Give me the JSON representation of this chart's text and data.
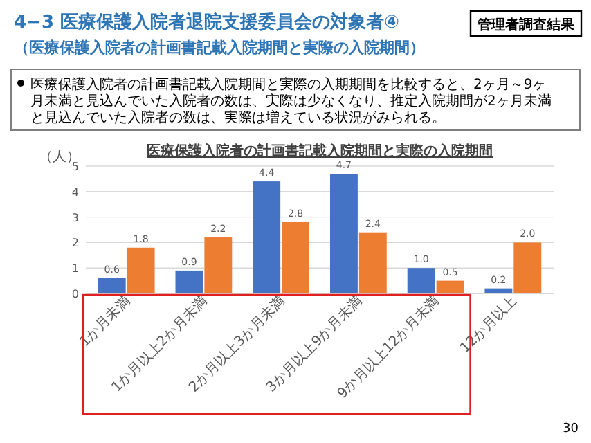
{
  "chart_data": {
    "type": "bar",
    "title": "医療保護入院者の計画書記載入院期間と実際の入院期間",
    "ylabel": "（人）",
    "annotations": [
      "4−3 医療保護入院者退院支援委員会の対象者④",
      "（医療保護入院者の計画書記載入院期間と実際の入院期間）",
      "管理者調査結果",
      "医療保護入院者の計画書記載入院期間と実際の入期期間を比較すると、2ヶ月～9ヶ月未満と見込んでいた入院者の数は、実際は少なくなり、推定入院期間が2ヶ月未満と見込んでいた入院者の数は、実際は増えている状況がみられる。",
      "30"
    ],
    "categories": [
      "1か月未満",
      "1か月以上2か月未満",
      "2か月以上3か月未満",
      "3か月以上9か月未満",
      "9か月以上12か月未満",
      "12か月以上"
    ],
    "series": [
      {
        "color": "#4472c4",
        "values": [
          0.6,
          0.9,
          4.4,
          4.7,
          1.0,
          0.2
        ],
        "value_labels": [
          "0.6",
          "0.9",
          "4.4",
          "4.7",
          "1.0",
          "0.2"
        ]
      },
      {
        "color": "#ed7d31",
        "values": [
          1.8,
          2.2,
          2.8,
          2.4,
          0.5,
          2.0
        ],
        "value_labels": [
          "1.8",
          "2.2",
          "2.8",
          "2.4",
          "0.5",
          "2.0"
        ]
      }
    ],
    "ylim": [
      0,
      5
    ],
    "yticks": [
      0,
      1,
      2,
      3,
      4,
      5
    ],
    "grid": "y"
  }
}
